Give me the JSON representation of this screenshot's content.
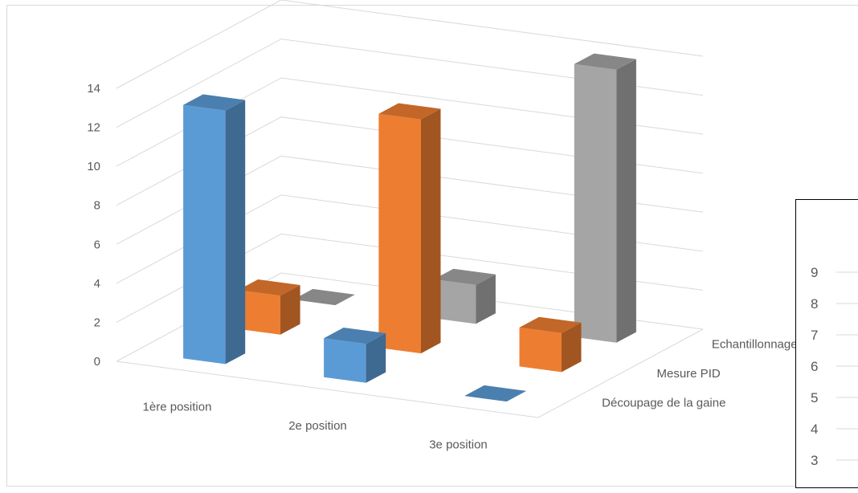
{
  "chart_data": {
    "type": "bar",
    "subtype": "3d-clustered-column",
    "title": "",
    "xlabel": "",
    "ylabel": "",
    "categories": [
      "1ère position",
      "2e position",
      "3e position"
    ],
    "series": [
      {
        "name": "Découpage de la gaine",
        "values": [
          13,
          2,
          0
        ],
        "color": "#5b9bd5"
      },
      {
        "name": "Mesure PID",
        "values": [
          2,
          12,
          2
        ],
        "color": "#ed7d31"
      },
      {
        "name": "Echantillonnage des sols",
        "values": [
          0,
          2,
          14
        ],
        "color": "#a5a5a5"
      }
    ],
    "ylim": [
      0,
      14
    ],
    "yticks": [
      0,
      2,
      4,
      6,
      8,
      10,
      12,
      14
    ],
    "grid": true,
    "legend": "depth-axis-labels",
    "inset_axis": {
      "ticks": [
        "9",
        "8",
        "7",
        "6",
        "5",
        "4",
        "3"
      ]
    }
  }
}
